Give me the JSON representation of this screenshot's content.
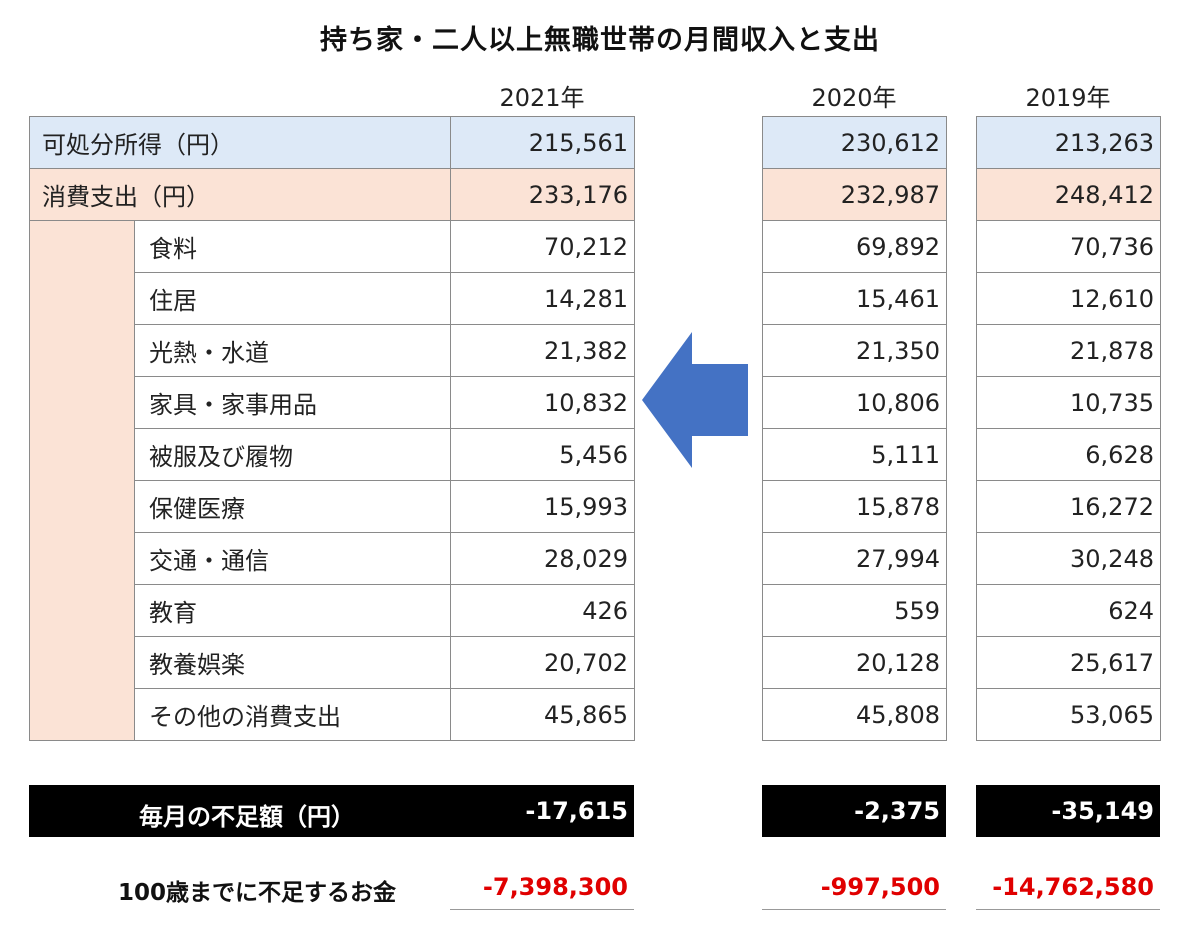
{
  "title": "持ち家・二人以上無職世帯の月間収入と支出",
  "years": [
    "2021年",
    "2020年",
    "2019年"
  ],
  "rows": {
    "income_label": "可処分所得（円）",
    "spending_label": "消費支出（円）",
    "categories": [
      "食料",
      "住居",
      "光熱・水道",
      "家具・家事用品",
      "被服及び履物",
      "保健医療",
      "交通・通信",
      "教育",
      "教養娯楽",
      "その他の消費支出"
    ]
  },
  "data": {
    "y2021": {
      "income": "215,561",
      "spending": "233,176",
      "items": [
        "70,212",
        "14,281",
        "21,382",
        "10,832",
        "5,456",
        "15,993",
        "28,029",
        "426",
        "20,702",
        "45,865"
      ],
      "deficit": "-17,615",
      "shortfall": "-7,398,300"
    },
    "y2020": {
      "income": "230,612",
      "spending": "232,987",
      "items": [
        "69,892",
        "15,461",
        "21,350",
        "10,806",
        "5,111",
        "15,878",
        "27,994",
        "559",
        "20,128",
        "45,808"
      ],
      "deficit": "-2,375",
      "shortfall": "-997,500"
    },
    "y2019": {
      "income": "213,263",
      "spending": "248,412",
      "items": [
        "70,736",
        "12,610",
        "21,878",
        "10,735",
        "6,628",
        "16,272",
        "30,248",
        "624",
        "25,617",
        "53,065"
      ],
      "deficit": "-35,149",
      "shortfall": "-14,762,580"
    }
  },
  "deficit_label": "毎月の不足額（円）",
  "shortfall_label": "100歳までに不足するお金",
  "colors": {
    "income_bg": "#dde9f7",
    "spending_bg": "#fbe3d6",
    "shortfall_text": "#e00000",
    "arrow": "#4472c4"
  },
  "icons": {
    "arrow": "left-arrow-icon"
  }
}
